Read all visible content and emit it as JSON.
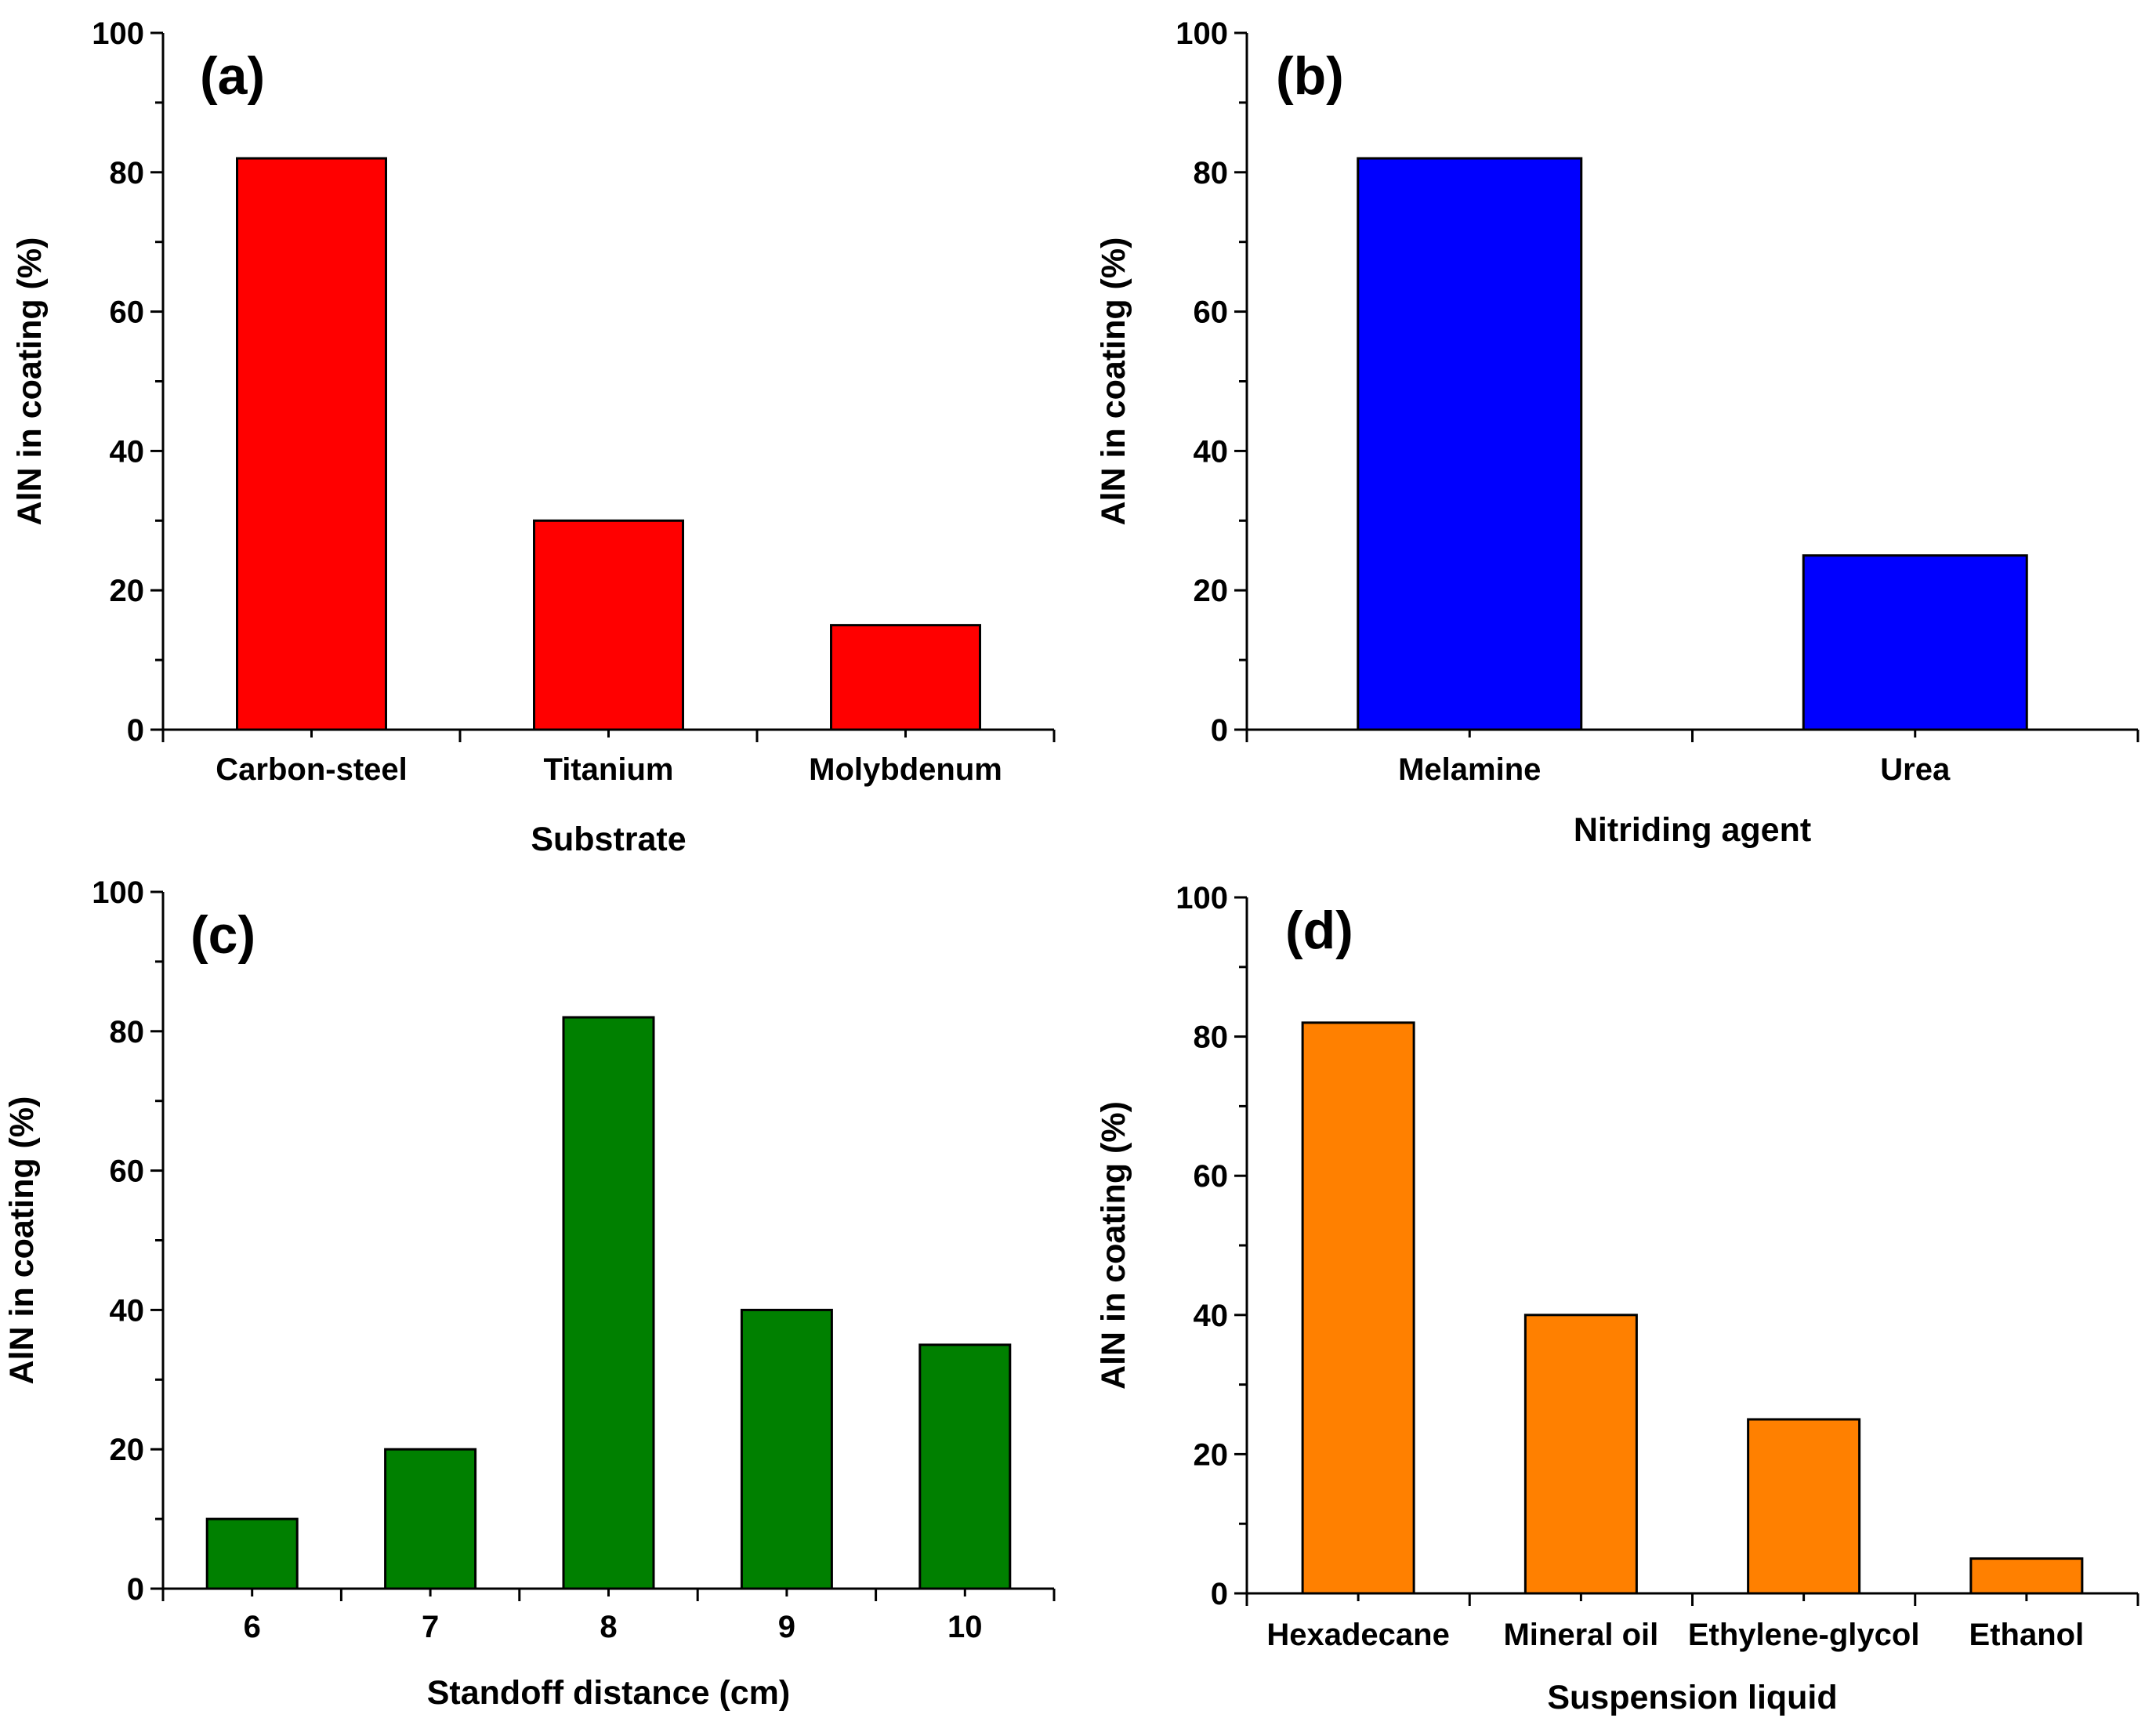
{
  "chart_data": [
    {
      "type": "bar",
      "panel_label": "(a)",
      "title": "",
      "xlabel": "Substrate",
      "ylabel": "AlN in coating (%)",
      "categories": [
        "Carbon-steel",
        "Titanium",
        "Molybdenum"
      ],
      "values": [
        82,
        30,
        15
      ],
      "ylim": [
        0,
        100
      ],
      "yticks": [
        0,
        20,
        40,
        60,
        80,
        100
      ],
      "color": "#ff0000",
      "grid": false,
      "legend": "none"
    },
    {
      "type": "bar",
      "panel_label": "(b)",
      "title": "",
      "xlabel": "Nitriding agent",
      "ylabel": "AlN in coating (%)",
      "categories": [
        "Melamine",
        "Urea"
      ],
      "values": [
        82,
        25
      ],
      "ylim": [
        0,
        100
      ],
      "yticks": [
        0,
        20,
        40,
        60,
        80,
        100
      ],
      "color": "#0000ff",
      "grid": false,
      "legend": "none"
    },
    {
      "type": "bar",
      "panel_label": "(c)",
      "title": "",
      "xlabel": "Standoff distance (cm)",
      "ylabel": "AlN in coating (%)",
      "categories": [
        "6",
        "7",
        "8",
        "9",
        "10"
      ],
      "values": [
        10,
        20,
        82,
        40,
        35
      ],
      "ylim": [
        0,
        100
      ],
      "yticks": [
        0,
        20,
        40,
        60,
        80,
        100
      ],
      "color": "#008000",
      "grid": false,
      "legend": "none"
    },
    {
      "type": "bar",
      "panel_label": "(d)",
      "title": "",
      "xlabel": "Suspension liquid",
      "ylabel": "AlN in coating (%)",
      "categories": [
        "Hexadecane",
        "Mineral oil",
        "Ethylene-glycol",
        "Ethanol"
      ],
      "values": [
        82,
        40,
        25,
        5
      ],
      "ylim": [
        0,
        100
      ],
      "yticks": [
        0,
        20,
        40,
        60,
        80,
        100
      ],
      "color": "#ff8000",
      "grid": false,
      "legend": "none"
    }
  ]
}
